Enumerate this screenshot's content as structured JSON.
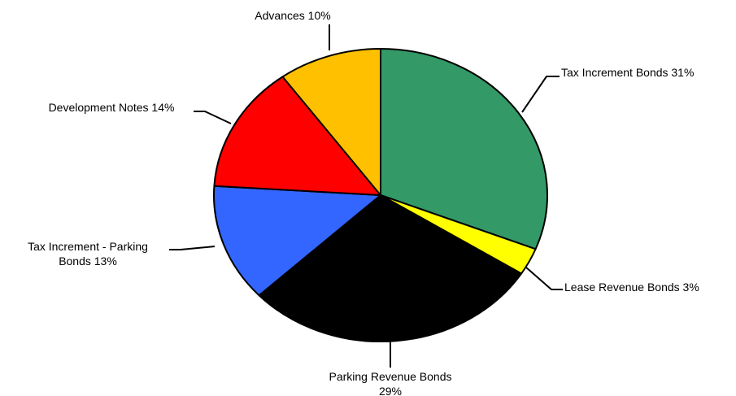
{
  "chart_data": {
    "type": "pie",
    "title": "",
    "slices": [
      {
        "name": "Tax Increment Bonds",
        "value": 31,
        "color": "#339966",
        "label_lines": [
          "Tax  Increment Bonds 31%"
        ]
      },
      {
        "name": "Lease Revenue Bonds",
        "value": 3,
        "color": "#ffff00",
        "label_lines": [
          "Lease Revenue  Bonds 3%"
        ]
      },
      {
        "name": "Parking Revenue Bonds",
        "value": 29,
        "color": "#000000",
        "label_lines": [
          "Parking Revenue  Bonds",
          "29%"
        ]
      },
      {
        "name": "Tax Increment - Parking Bonds",
        "value": 13,
        "color": "#3366ff",
        "label_lines": [
          "Tax  Increment - Parking",
          "Bonds 13%"
        ]
      },
      {
        "name": "Development Notes",
        "value": 14,
        "color": "#ff0000",
        "label_lines": [
          "Development  Notes 14%"
        ]
      },
      {
        "name": "Advances",
        "value": 10,
        "color": "#ffc000",
        "label_lines": [
          "Advances 10%"
        ]
      }
    ]
  }
}
